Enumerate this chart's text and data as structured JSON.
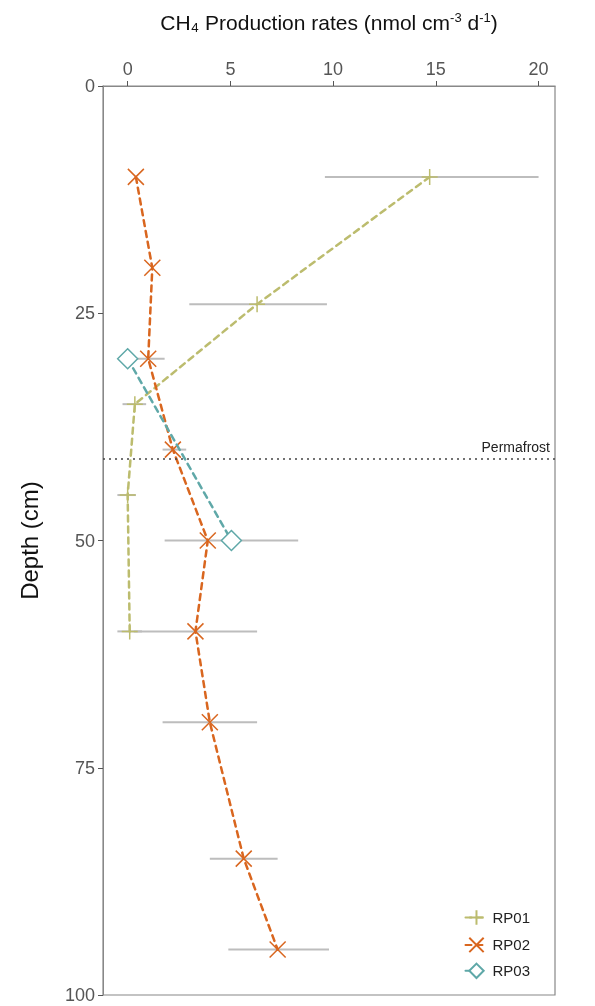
{
  "chart_data": {
    "type": "line",
    "xlabel": "CH₄ Production rates (nmol cm$^{-3}$ d$^{-1}$)",
    "ylabel": "Depth (cm)",
    "xlim": [
      -1.2,
      20.8
    ],
    "xticks": [
      0,
      5,
      10,
      15,
      20
    ],
    "ylim": [
      100,
      0
    ],
    "yticks": [
      0,
      25,
      50,
      75,
      100
    ],
    "grid": false,
    "legend": "bottom right",
    "line_style": "dashed",
    "series": [
      {
        "name": "RP01",
        "color": "#bcbc6e",
        "marker": "plus",
        "x": [
          14.7,
          6.3,
          0.35,
          0,
          0.1
        ],
        "values": [
          10,
          24,
          35,
          45,
          60
        ],
        "xerrors": [
          [
            9.6,
            20.0
          ],
          [
            3.0,
            9.7
          ],
          [
            -0.25,
            0.9
          ],
          [
            -0.5,
            0.4
          ],
          [
            -0.5,
            0.7
          ]
        ]
      },
      {
        "name": "RP02",
        "color": "#d9661f",
        "marker": "cross",
        "x": [
          0.4,
          1.2,
          1.0,
          2.2,
          3.9,
          3.3,
          4.0,
          5.65,
          7.3
        ],
        "values": [
          10,
          20,
          30,
          40,
          50,
          60,
          70,
          85,
          95
        ],
        "xerrors": [
          null,
          null,
          [
            0.2,
            1.8
          ],
          [
            1.7,
            2.85
          ],
          null,
          [
            0.3,
            6.3
          ],
          [
            1.7,
            6.3
          ],
          [
            4.0,
            7.3
          ],
          [
            4.9,
            9.8
          ]
        ]
      },
      {
        "name": "RP03",
        "color": "#5fa8a8",
        "marker": "diamond",
        "x": [
          0,
          5.05
        ],
        "values": [
          30,
          50
        ],
        "xerrors": [
          null,
          [
            1.8,
            8.3
          ]
        ]
      }
    ],
    "ref_lines": [
      {
        "axis": "y",
        "value": 41,
        "label": "Permafrost",
        "color": "#444444",
        "line_style": "dotted"
      }
    ]
  }
}
